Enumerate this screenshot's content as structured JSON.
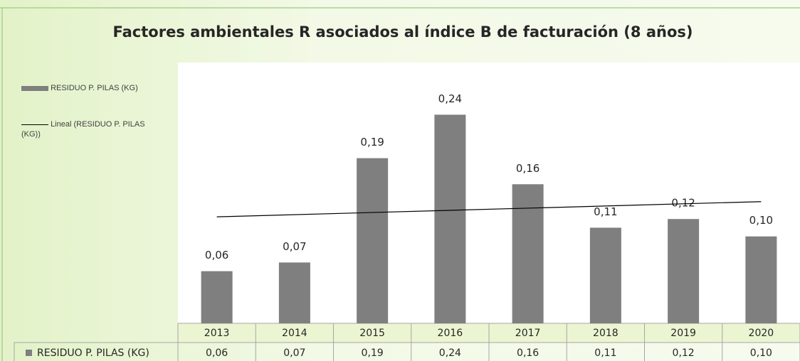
{
  "chart_data": {
    "type": "bar",
    "title": "Factores ambientales R asociados al índice B de facturación (8 años)",
    "categories": [
      "2013",
      "2014",
      "2015",
      "2016",
      "2017",
      "2018",
      "2019",
      "2020"
    ],
    "series": [
      {
        "name": "RESIDUO P. PILAS (KG)",
        "color": "#7f7f7f",
        "values": [
          0.06,
          0.07,
          0.19,
          0.24,
          0.16,
          0.11,
          0.12,
          0.1
        ],
        "value_labels": [
          "0,06",
          "0,07",
          "0,19",
          "0,24",
          "0,16",
          "0,11",
          "0,12",
          "0,10"
        ]
      }
    ],
    "trendline": "linear",
    "trendline_name": "Lineal (RESIDUO P. PILAS (KG))",
    "trendline_color": "#000000",
    "ylim": [
      0,
      0.3
    ],
    "legend": "left",
    "data_table": true
  }
}
